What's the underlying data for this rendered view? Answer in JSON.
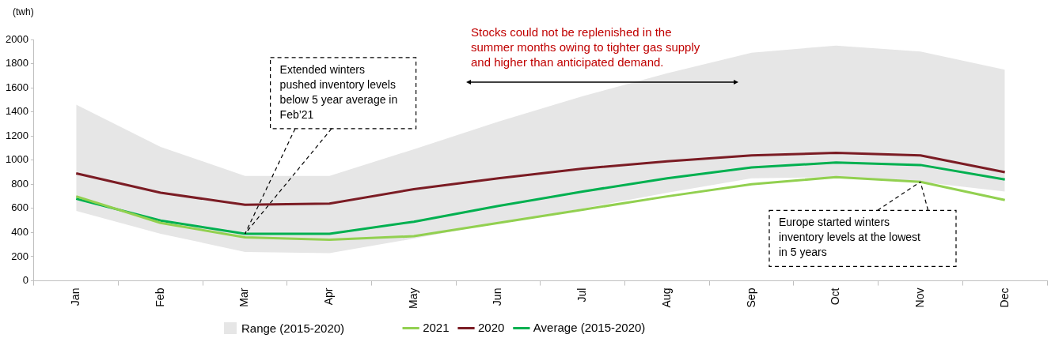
{
  "chart_data": {
    "type": "line",
    "ylabel": "(twh)",
    "categories": [
      "Jan",
      "Feb",
      "Mar",
      "Apr",
      "May",
      "Jun",
      "Jul",
      "Aug",
      "Sep",
      "Oct",
      "Nov",
      "Dec"
    ],
    "ylim": [
      0,
      2000
    ],
    "yticks": [
      0,
      200,
      400,
      600,
      800,
      1000,
      1200,
      1400,
      1600,
      1800,
      2000
    ],
    "grid": false,
    "legend": "bottom",
    "marker": "none",
    "line_style": "solid",
    "series": [
      {
        "name": "2021",
        "type": "line",
        "color": "#92d050",
        "values": [
          700,
          480,
          360,
          340,
          370,
          480,
          590,
          700,
          800,
          860,
          820,
          670
        ]
      },
      {
        "name": "2020",
        "type": "line",
        "color": "#7b1c24",
        "values": [
          890,
          730,
          630,
          640,
          760,
          850,
          930,
          990,
          1040,
          1060,
          1040,
          900
        ]
      },
      {
        "name": "Average (2015-2020)",
        "type": "line",
        "color": "#00b050",
        "values": [
          680,
          500,
          390,
          390,
          490,
          620,
          740,
          850,
          940,
          980,
          960,
          840
        ],
        "lower": [
          580,
          390,
          240,
          230,
          350,
          480,
          600,
          730,
          850,
          860,
          820,
          740
        ],
        "upper": [
          1460,
          1110,
          870,
          870,
          1090,
          1320,
          1530,
          1720,
          1890,
          1950,
          1900,
          1750
        ]
      }
    ],
    "annotations": [
      "Stocks could not be replenished in the summer months owing to tighter gas supply and higher than anticipated demand.",
      {
        "text": "Extended winters pushed inventory levels below 5 year average in Feb’21",
        "x": "Mar",
        "y": 390
      },
      {
        "text": "Europe started winters inventory levels at the lowest in 5 years",
        "x": "Nov",
        "y": 820
      },
      "Range (2015-2020)"
    ]
  }
}
